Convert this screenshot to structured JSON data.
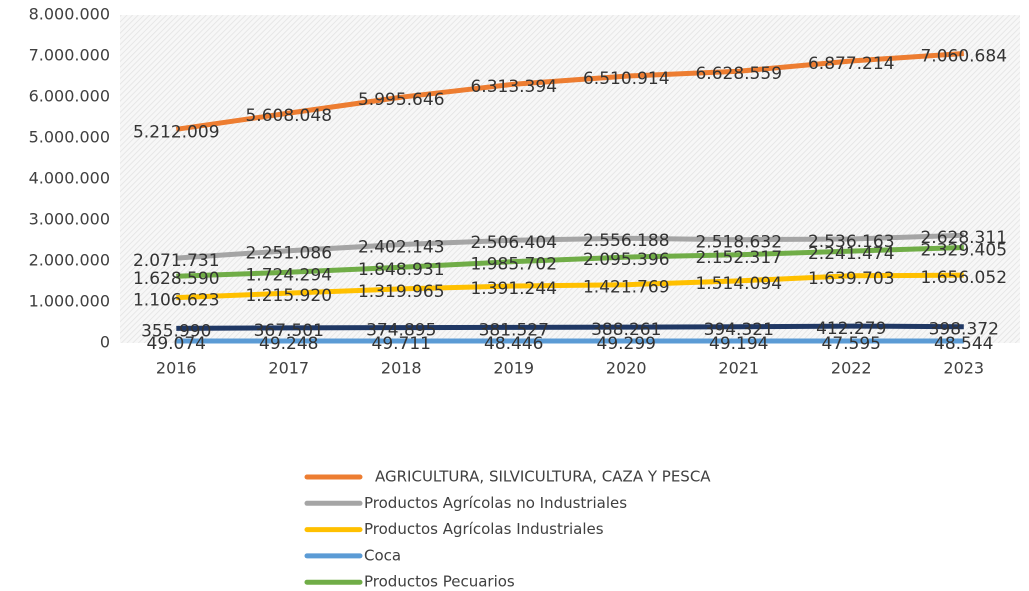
{
  "chart_data": {
    "type": "line",
    "categories": [
      "2016",
      "2017",
      "2018",
      "2019",
      "2020",
      "2021",
      "2022",
      "2023"
    ],
    "ylim": [
      0,
      8000000
    ],
    "yticks": [
      0,
      {
        "value": 1000000,
        "label": "1.000.000"
      },
      {
        "value": 2000000,
        "label": "2.000.000"
      },
      {
        "value": 3000000,
        "label": "3.000.000"
      },
      {
        "value": 4000000,
        "label": "4.000.000"
      },
      {
        "value": 5000000,
        "label": "5.000.000"
      },
      {
        "value": 6000000,
        "label": "6.000.000"
      },
      {
        "value": 7000000,
        "label": "7.000.000"
      },
      {
        "value": 8000000,
        "label": "8.000.000"
      }
    ],
    "series": [
      {
        "name": "AGRICULTURA, SILVICULTURA, CAZA Y PESCA",
        "color": "#ed7d31",
        "values": [
          5212009,
          5608048,
          5995646,
          6313394,
          6510914,
          6628559,
          6877214,
          7060684
        ],
        "value_labels": [
          "5.212.009",
          "5.608.048",
          "5.995.646",
          "6.313.394",
          "6.510.914",
          "6.628.559",
          "6.877.214",
          "7.060.684"
        ]
      },
      {
        "name": "Productos Agrícolas no Industriales",
        "color": "#a5a5a5",
        "values": [
          2071731,
          2251086,
          2402143,
          2506404,
          2556188,
          2518632,
          2536163,
          2628311
        ],
        "value_labels": [
          "2.071.731",
          "2.251.086",
          "2.402.143",
          "2.506.404",
          "2.556.188",
          "2.518.632",
          "2.536.163",
          "2.628.311"
        ]
      },
      {
        "name": "Productos Agrícolas Industriales",
        "color": "#ffc000",
        "values": [
          1106623,
          1215920,
          1319965,
          1391244,
          1421769,
          1514094,
          1639703,
          1656052
        ],
        "value_labels": [
          "1.106.623",
          "1.215.920",
          "1.319.965",
          "1.391.244",
          "1.421.769",
          "1.514.094",
          "1.639.703",
          "1.656.052"
        ]
      },
      {
        "name": "Coca",
        "color": "#5b9bd5",
        "values": [
          49074,
          49248,
          49711,
          48446,
          49299,
          49194,
          47595,
          48544
        ],
        "value_labels": [
          "49.074",
          "49.248",
          "49.711",
          "48.446",
          "49.299",
          "49.194",
          "47.595",
          "48.544"
        ]
      },
      {
        "name": "Productos Pecuarios",
        "color": "#70ad47",
        "values": [
          1628590,
          1724294,
          1848931,
          1985702,
          2095396,
          2152317,
          2241474,
          2329405
        ],
        "value_labels": [
          "1.628.590",
          "1.724.294",
          "1.848.931",
          "1.985.702",
          "2.095.396",
          "2.152.317",
          "2.241.474",
          "2.329.405"
        ]
      },
      {
        "color": "#203864",
        "values": [
          355990,
          367501,
          374895,
          381527,
          388261,
          394321,
          412279,
          398372
        ],
        "value_labels": [
          "355.990",
          "367.501",
          "374.895",
          "381.527",
          "388.261",
          "394.321",
          "412.279",
          "398.372"
        ]
      }
    ]
  }
}
